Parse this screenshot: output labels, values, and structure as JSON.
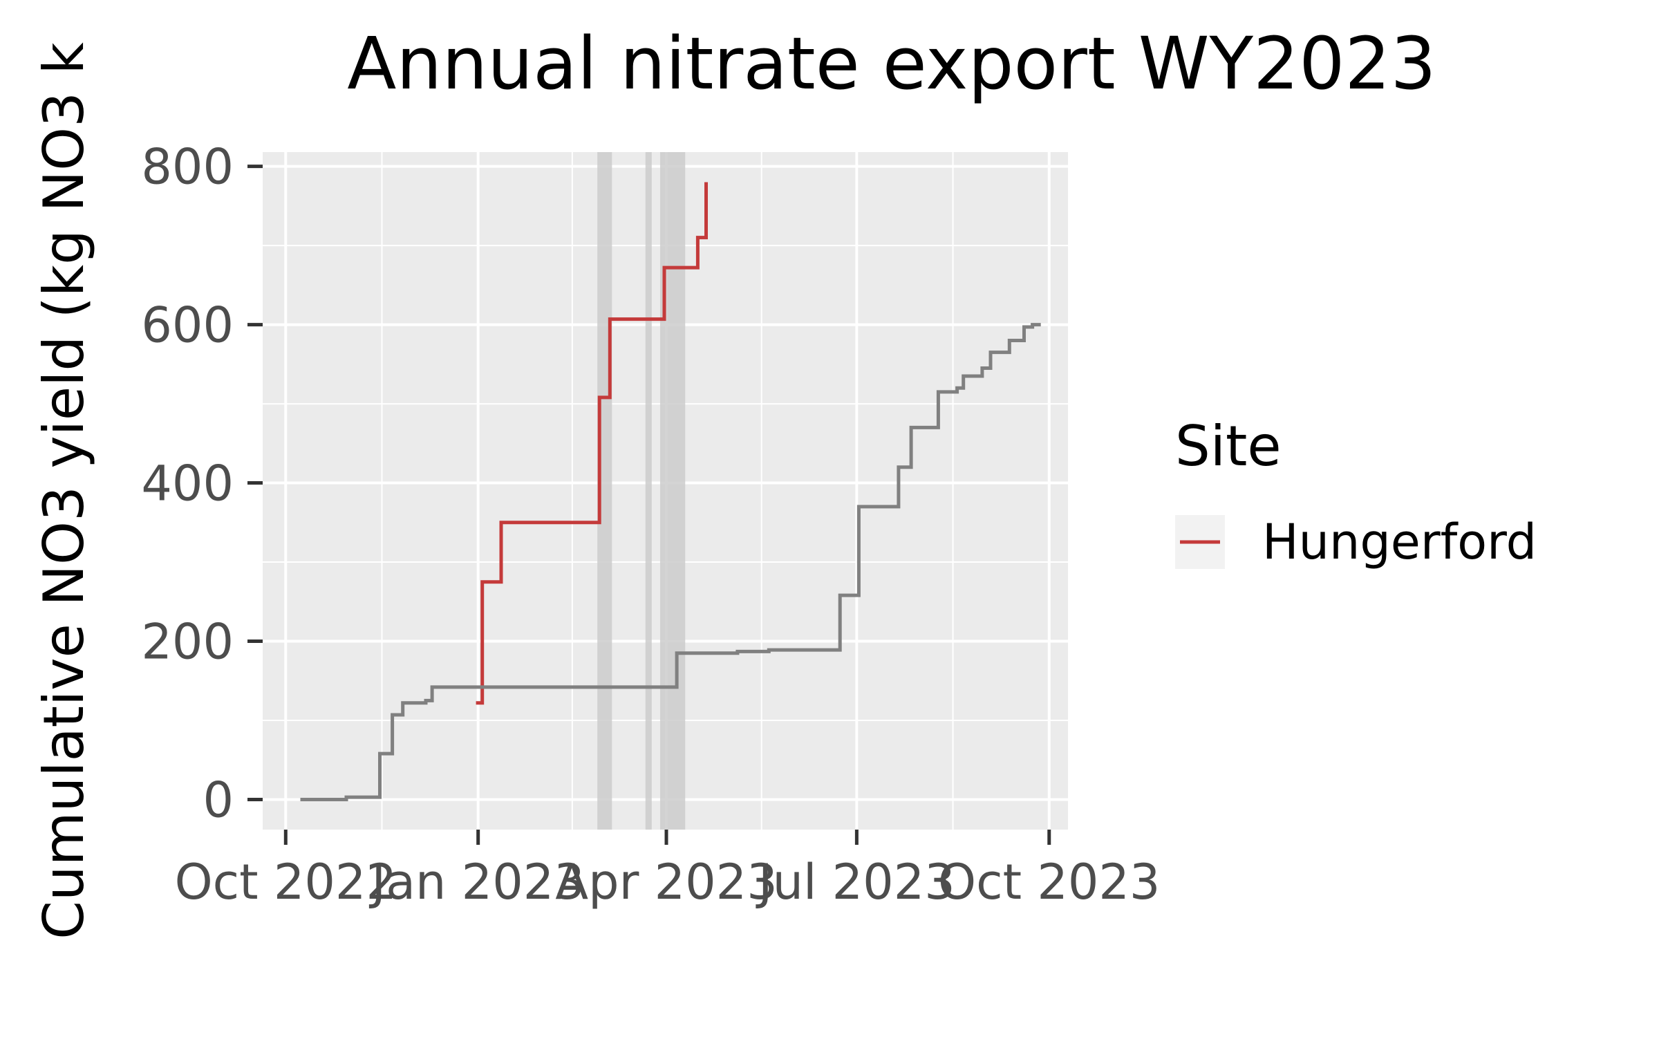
{
  "chart_data": {
    "type": "line",
    "title": "Annual nitrate export WY2023",
    "xlabel": "",
    "ylabel": "Cumulative NO3 yield (kg NO3 k",
    "x_range": [
      "2022-09-20",
      "2023-10-10"
    ],
    "ylim": [
      -38,
      818
    ],
    "x_ticks": [
      {
        "date": "2022-10-01",
        "label": "Oct 2022"
      },
      {
        "date": "2023-01-01",
        "label": "Jan 2023"
      },
      {
        "date": "2023-04-01",
        "label": "Apr 2023"
      },
      {
        "date": "2023-07-01",
        "label": "Jul 2023"
      },
      {
        "date": "2023-10-01",
        "label": "Oct 2023"
      }
    ],
    "y_ticks": [
      0,
      200,
      400,
      600,
      800
    ],
    "grid": true,
    "legend": {
      "title": "Site",
      "position": "right",
      "entries": [
        {
          "label": "Hungerford",
          "color": "#c43a3a"
        }
      ]
    },
    "shaded_periods": [
      {
        "start": "2023-02-27",
        "end": "2023-03-06",
        "color": "#cccccc"
      },
      {
        "start": "2023-03-22",
        "end": "2023-03-25",
        "color": "#cccccc"
      },
      {
        "start": "2023-03-29",
        "end": "2023-04-10",
        "color": "#cccccc"
      }
    ],
    "series": [
      {
        "name": "Hungerford",
        "color": "#c43a3a",
        "shape": "step",
        "points": [
          [
            "2022-12-31",
            122
          ],
          [
            "2023-01-03",
            122
          ],
          [
            "2023-01-03",
            275
          ],
          [
            "2023-01-12",
            275
          ],
          [
            "2023-01-12",
            350
          ],
          [
            "2023-02-28",
            350
          ],
          [
            "2023-02-28",
            508
          ],
          [
            "2023-03-05",
            508
          ],
          [
            "2023-03-05",
            607
          ],
          [
            "2023-03-31",
            607
          ],
          [
            "2023-03-31",
            672
          ],
          [
            "2023-04-16",
            672
          ],
          [
            "2023-04-16",
            710
          ],
          [
            "2023-04-20",
            710
          ],
          [
            "2023-04-20",
            780
          ]
        ]
      },
      {
        "name": "",
        "color": "#808080",
        "shape": "step",
        "points": [
          [
            "2022-10-08",
            0
          ],
          [
            "2022-10-30",
            0
          ],
          [
            "2022-10-30",
            3
          ],
          [
            "2022-11-15",
            3
          ],
          [
            "2022-11-15",
            58
          ],
          [
            "2022-11-21",
            58
          ],
          [
            "2022-11-21",
            107
          ],
          [
            "2022-11-26",
            107
          ],
          [
            "2022-11-26",
            122
          ],
          [
            "2022-12-07",
            122
          ],
          [
            "2022-12-07",
            125
          ],
          [
            "2022-12-10",
            125
          ],
          [
            "2022-12-10",
            142
          ],
          [
            "2023-04-06",
            142
          ],
          [
            "2023-04-06",
            185
          ],
          [
            "2023-05-05",
            185
          ],
          [
            "2023-05-05",
            187
          ],
          [
            "2023-05-20",
            187
          ],
          [
            "2023-05-20",
            189
          ],
          [
            "2023-06-23",
            189
          ],
          [
            "2023-06-23",
            258
          ],
          [
            "2023-07-02",
            258
          ],
          [
            "2023-07-02",
            370
          ],
          [
            "2023-07-21",
            370
          ],
          [
            "2023-07-21",
            420
          ],
          [
            "2023-07-27",
            420
          ],
          [
            "2023-07-27",
            470
          ],
          [
            "2023-08-09",
            470
          ],
          [
            "2023-08-09",
            515
          ],
          [
            "2023-08-18",
            515
          ],
          [
            "2023-08-18",
            520
          ],
          [
            "2023-08-21",
            520
          ],
          [
            "2023-08-21",
            535
          ],
          [
            "2023-08-30",
            535
          ],
          [
            "2023-08-30",
            545
          ],
          [
            "2023-09-03",
            545
          ],
          [
            "2023-09-03",
            565
          ],
          [
            "2023-09-12",
            565
          ],
          [
            "2023-09-12",
            580
          ],
          [
            "2023-09-19",
            580
          ],
          [
            "2023-09-19",
            597
          ],
          [
            "2023-09-23",
            597
          ],
          [
            "2023-09-23",
            600
          ],
          [
            "2023-09-27",
            600
          ]
        ]
      }
    ]
  }
}
